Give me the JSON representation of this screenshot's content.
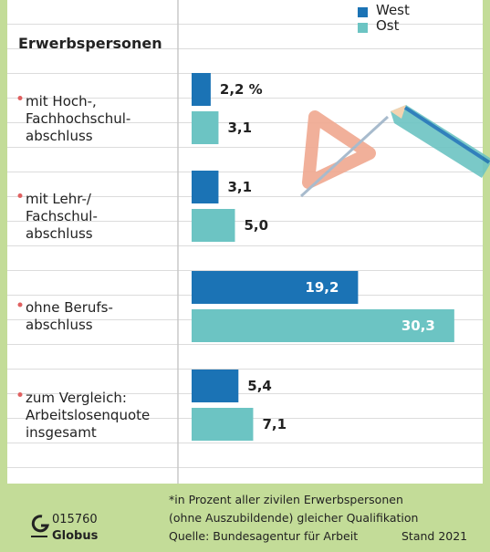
{
  "chart_data": {
    "type": "bar",
    "orientation": "horizontal",
    "title": "Erwerbspersonen",
    "categories": [
      "mit Hoch-,\nFachhochschul-\nabschluss",
      "mit Lehr-/\nFachschul-\nabschluss",
      "ohne Berufs-\nabschluss",
      "zum Vergleich:\nArbeitslosenquote\ninsgesamt"
    ],
    "series": [
      {
        "name": "West",
        "color": "#1b73b5",
        "values": [
          2.2,
          3.1,
          19.2,
          5.4
        ],
        "value_labels": [
          "2,2 %",
          "3,1",
          "19,2",
          "5,4"
        ]
      },
      {
        "name": "Ost",
        "color": "#6cc4c3",
        "values": [
          3.1,
          5.0,
          30.3,
          7.1
        ],
        "value_labels": [
          "3,1",
          "5,0",
          "30,3",
          "7,1"
        ]
      }
    ],
    "footnote": "*in Prozent aller zivilen Erwerbspersonen\n(ohne Auszubildende) gleicher Qualifikation",
    "source": "Quelle: Bundesagentur für Arbeit",
    "date": "Stand 2021",
    "id": "015760",
    "brand": "Globus"
  }
}
